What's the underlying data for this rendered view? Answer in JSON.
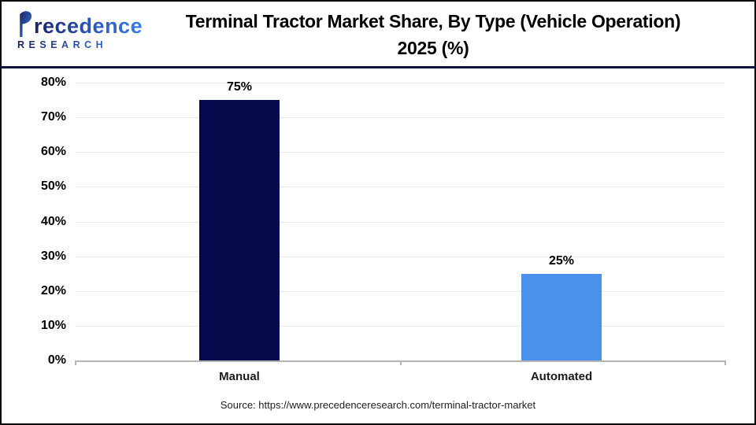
{
  "logo": {
    "brand": "Precedence",
    "brand_rest": "recedence",
    "subtitle": "RESEARCH"
  },
  "header": {
    "title_line1": "Terminal Tractor Market Share, By Type (Vehicle Operation)",
    "title_line2": "2025 (%)"
  },
  "chart_data": {
    "type": "bar",
    "title": "Terminal Tractor Market Share, By Type (Vehicle Operation) 2025 (%)",
    "categories": [
      "Manual",
      "Automated"
    ],
    "values": [
      75,
      25
    ],
    "value_labels": [
      "75%",
      "25%"
    ],
    "bar_colors": [
      "#04094b",
      "#4a91ec"
    ],
    "xlabel": "",
    "ylabel": "",
    "ylim": [
      0,
      80
    ],
    "yticks": [
      0,
      10,
      20,
      30,
      40,
      50,
      60,
      70,
      80
    ],
    "ytick_labels": [
      "0%",
      "10%",
      "20%",
      "30%",
      "40%",
      "50%",
      "60%",
      "70%",
      "80%"
    ],
    "grid": true,
    "legend_position": "none"
  },
  "footer": {
    "source": "Source: https://www.precedenceresearch.com/terminal-tractor-market"
  },
  "colors": {
    "bar_manual": "#04094b",
    "bar_automated": "#4a91ec",
    "header_divider": "#0d1240",
    "gridline": "#ececec",
    "axis": "#b5b5b5",
    "logo_gradient_start": "#1b2166",
    "logo_gradient_end": "#3b7de4"
  }
}
